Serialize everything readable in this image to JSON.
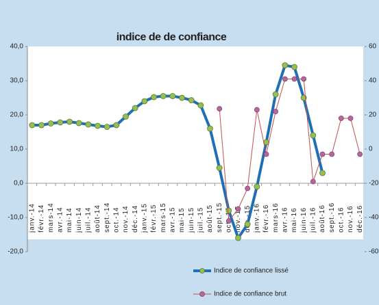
{
  "chart_data": {
    "type": "line",
    "title": "indice de de confiance",
    "categories": [
      "janv.-14",
      "févr.-14",
      "mars-14",
      "avr.-14",
      "mai-14",
      "juin-14",
      "juil.-14",
      "août-14",
      "sept.-14",
      "oct.-14",
      "nov.-14",
      "déc.-14",
      "janv.-15",
      "févr.-15",
      "mars-15",
      "avr.-15",
      "mai-15",
      "juin-15",
      "juil.-15",
      "août-15",
      "sept.-15",
      "oct.-15",
      "nov.-15",
      "déc.-15",
      "janv.-16",
      "févr.-16",
      "mars-16",
      "avr.-16",
      "mai-16",
      "juin-16",
      "juil.-16",
      "août-16",
      "sept.-16",
      "oct.-16",
      "nov.-16",
      "déc.-16"
    ],
    "series": [
      {
        "name": "Indice de confiance lissé",
        "color": "#1f6fb8",
        "marker_color": "#9bbb59",
        "values": [
          17,
          17,
          17.5,
          17.8,
          18,
          17.6,
          17.2,
          16.8,
          16.5,
          17,
          19.5,
          22,
          24,
          25.2,
          25.5,
          25.5,
          25,
          24.3,
          22.8,
          16,
          4.5,
          -8,
          -16,
          -12,
          -1,
          12,
          26,
          34.5,
          34,
          25,
          14,
          3,
          null,
          null,
          null,
          null
        ]
      },
      {
        "name": "Indice de confiance brut",
        "color": "#c0504d",
        "marker_color": "#b06a9c",
        "axis": "y2",
        "values": [
          null,
          null,
          null,
          null,
          null,
          null,
          null,
          null,
          null,
          null,
          null,
          null,
          null,
          null,
          null,
          null,
          null,
          null,
          null,
          null,
          23.6,
          -42,
          -35,
          -23,
          23,
          -3,
          22,
          41,
          41,
          41,
          -19,
          -3,
          -3,
          18,
          18,
          -3
        ]
      }
    ],
    "ylim": [
      -20,
      40
    ],
    "yticks": [
      {
        "value": -20,
        "label": "-20,0"
      },
      {
        "value": -10,
        "label": "-10,0"
      },
      {
        "value": 0,
        "label": "0,0"
      },
      {
        "value": 10,
        "label": "10,0"
      },
      {
        "value": 20,
        "label": "20,0"
      },
      {
        "value": 30,
        "label": "30,0"
      },
      {
        "value": 40,
        "label": "40,0"
      }
    ],
    "y2lim": [
      -60,
      60
    ],
    "y2ticks": [
      -60,
      -40,
      -20,
      0,
      20,
      40,
      60
    ],
    "grid": false,
    "legend": "bottom"
  }
}
